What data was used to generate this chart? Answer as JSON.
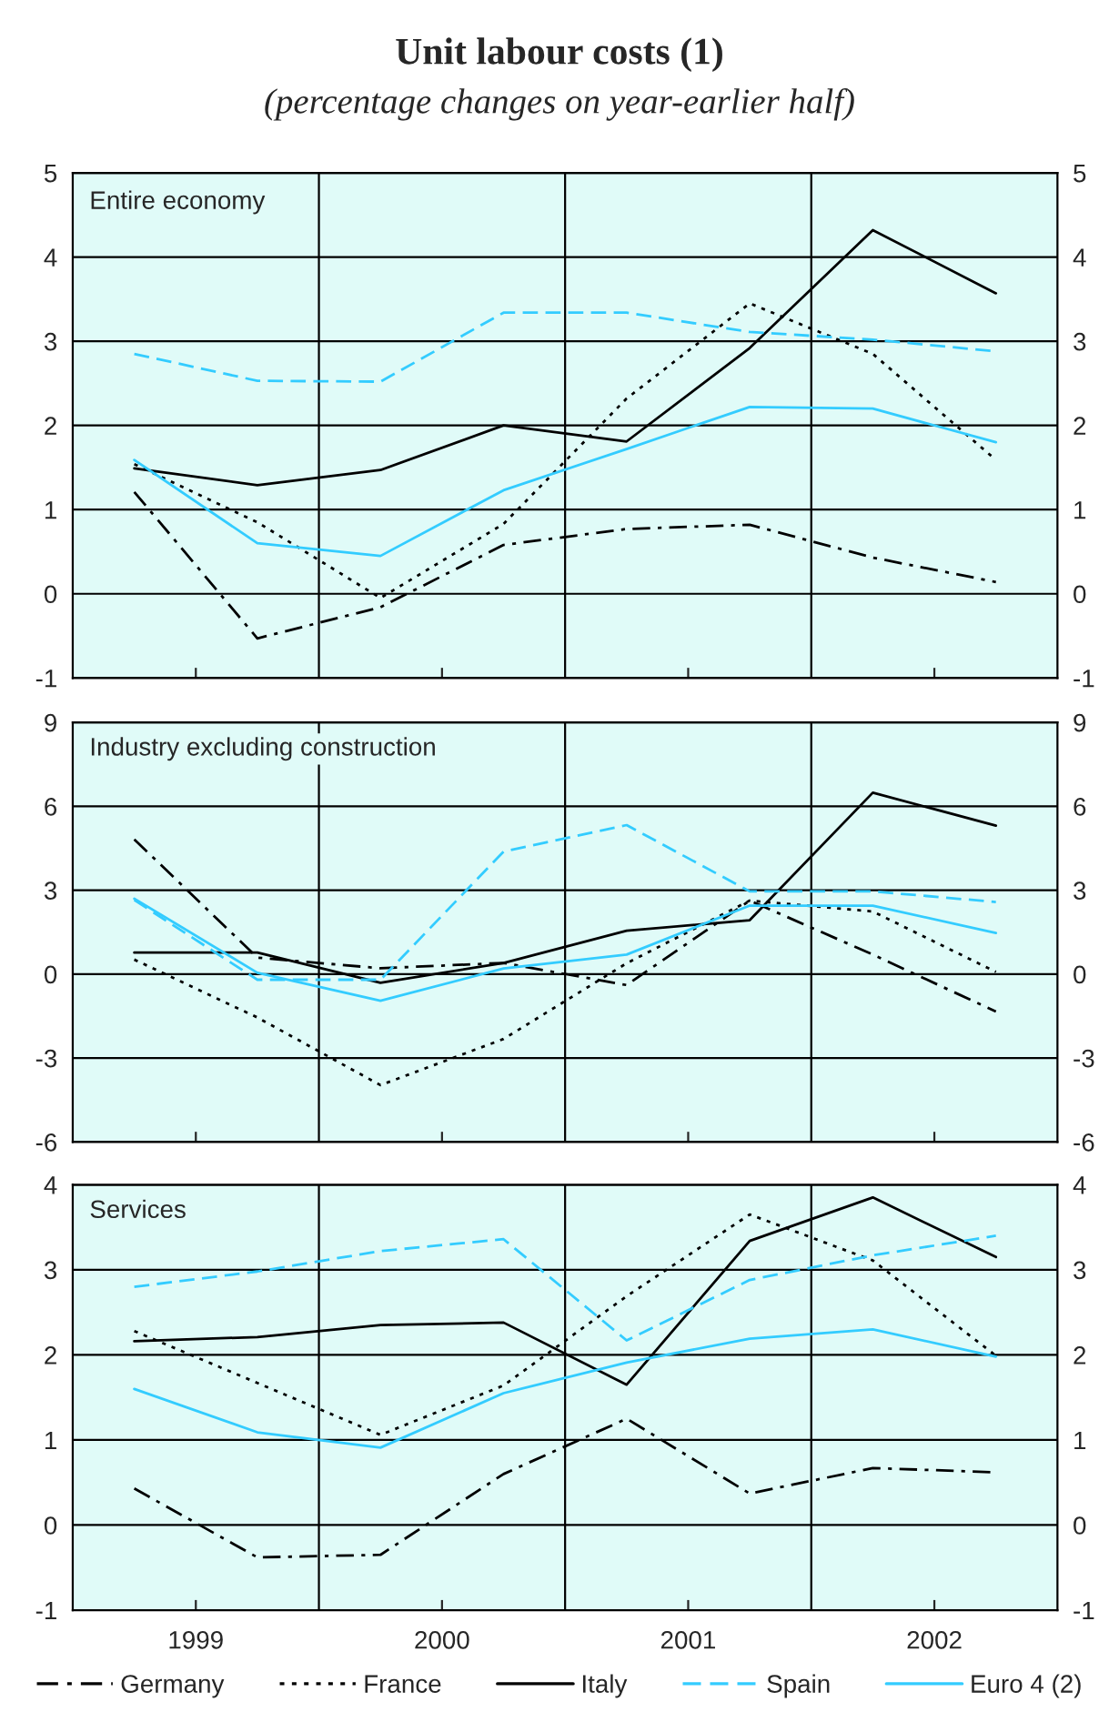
{
  "chart_data": [
    {
      "type": "line",
      "title": "Unit labour costs (1)",
      "subtitle": "(percentage changes on year-earlier half)",
      "annotations": [
        "Entire economy"
      ],
      "x": [
        1999.25,
        1999.75,
        2000.25,
        2000.75,
        2001.25,
        2001.75,
        2002.25,
        2002.75
      ],
      "xlim": [
        1999,
        2003
      ],
      "xticks": [
        {
          "value": 1999.5,
          "label": null
        },
        {
          "value": 2000.5,
          "label": null
        },
        {
          "value": 2001.5,
          "label": null
        },
        {
          "value": 2002.5,
          "label": null
        }
      ],
      "ylim": [
        -1,
        5
      ],
      "yticks": [
        -1,
        0,
        1,
        2,
        3,
        4,
        5
      ],
      "y2lim": [
        -1,
        5
      ],
      "y2ticks": [
        -1,
        0,
        1,
        2,
        3,
        4,
        5
      ],
      "tick_labels": "y",
      "grid": "y",
      "legend": "bottom",
      "ref_lines": [
        {
          "axis": "x",
          "value": 2000,
          "color": "#000000"
        },
        {
          "axis": "x",
          "value": 2001,
          "color": "#000000"
        },
        {
          "axis": "x",
          "value": 2002,
          "color": "#000000"
        }
      ],
      "series": [
        {
          "name": "Germany",
          "color": "#000000",
          "line_style": "dashdot",
          "values": [
            1.21,
            -0.53,
            -0.16,
            0.58,
            0.77,
            0.82,
            0.43,
            0.14
          ]
        },
        {
          "name": "France",
          "color": "#000000",
          "line_style": "dotted",
          "values": [
            1.54,
            0.85,
            -0.05,
            0.83,
            2.32,
            3.45,
            2.85,
            1.59
          ]
        },
        {
          "name": "Italy",
          "color": "#000000",
          "line_style": "solid",
          "values": [
            1.49,
            1.29,
            1.47,
            2.0,
            1.81,
            2.92,
            4.32,
            3.57
          ]
        },
        {
          "name": "Spain",
          "color": "#33ccff",
          "line_style": "dashed",
          "values": [
            2.85,
            2.53,
            2.52,
            3.34,
            3.34,
            3.11,
            3.02,
            2.88
          ]
        },
        {
          "name": "Euro 4 (2)",
          "color": "#33ccff",
          "line_style": "solid",
          "values": [
            1.59,
            0.6,
            0.45,
            1.23,
            1.72,
            2.22,
            2.2,
            1.8
          ]
        }
      ]
    },
    {
      "type": "line",
      "annotations": [
        "Industry excluding construction"
      ],
      "x": [
        1999.25,
        1999.75,
        2000.25,
        2000.75,
        2001.25,
        2001.75,
        2002.25,
        2002.75
      ],
      "xlim": [
        1999,
        2003
      ],
      "xticks": [
        {
          "value": 1999.5,
          "label": null
        },
        {
          "value": 2000.5,
          "label": null
        },
        {
          "value": 2001.5,
          "label": null
        },
        {
          "value": 2002.5,
          "label": null
        }
      ],
      "ylim": [
        -6,
        9
      ],
      "yticks": [
        -6,
        -3,
        0,
        3,
        6,
        9
      ],
      "y2lim": [
        -6,
        9
      ],
      "y2ticks": [
        -6,
        -3,
        0,
        3,
        6,
        9
      ],
      "tick_labels": "y",
      "grid": "y",
      "ref_lines": [
        {
          "axis": "x",
          "value": 2000,
          "color": "#000000"
        },
        {
          "axis": "x",
          "value": 2001,
          "color": "#000000"
        },
        {
          "axis": "x",
          "value": 2002,
          "color": "#000000"
        }
      ],
      "series": [
        {
          "color": "#000000",
          "line_style": "dashdot",
          "values": [
            4.82,
            0.59,
            0.21,
            0.4,
            -0.39,
            2.63,
            0.7,
            -1.34
          ]
        },
        {
          "color": "#000000",
          "line_style": "dotted",
          "values": [
            0.52,
            -1.55,
            -3.97,
            -2.32,
            0.39,
            2.63,
            2.24,
            0.08
          ]
        },
        {
          "color": "#000000",
          "line_style": "solid",
          "values": [
            0.77,
            0.77,
            -0.31,
            0.4,
            1.55,
            1.93,
            6.49,
            5.31
          ]
        },
        {
          "color": "#33ccff",
          "line_style": "dashed",
          "values": [
            2.65,
            -0.2,
            -0.2,
            4.38,
            5.33,
            2.96,
            2.96,
            2.58
          ]
        },
        {
          "color": "#33ccff",
          "line_style": "solid",
          "values": [
            2.7,
            0.05,
            -0.95,
            0.2,
            0.7,
            2.45,
            2.45,
            1.47
          ]
        }
      ]
    },
    {
      "type": "line",
      "annotations": [
        "Services"
      ],
      "x": [
        1999.25,
        1999.75,
        2000.25,
        2000.75,
        2001.25,
        2001.75,
        2002.25,
        2002.75
      ],
      "xlim": [
        1999,
        2003
      ],
      "xticks": [
        {
          "value": 1999.5,
          "label": "1999"
        },
        {
          "value": 2000.5,
          "label": "2000"
        },
        {
          "value": 2001.5,
          "label": "2001"
        },
        {
          "value": 2002.5,
          "label": "2002"
        }
      ],
      "ylim": [
        -1,
        4
      ],
      "yticks": [
        -1,
        0,
        1,
        2,
        3,
        4
      ],
      "y2lim": [
        -1,
        4
      ],
      "y2ticks": [
        -1,
        0,
        1,
        2,
        3,
        4
      ],
      "grid": "y",
      "ref_lines": [
        {
          "axis": "x",
          "value": 2000,
          "color": "#000000"
        },
        {
          "axis": "x",
          "value": 2001,
          "color": "#000000"
        },
        {
          "axis": "x",
          "value": 2002,
          "color": "#000000"
        }
      ],
      "series": [
        {
          "color": "#000000",
          "line_style": "dashdot",
          "values": [
            0.43,
            -0.38,
            -0.35,
            0.6,
            1.25,
            0.37,
            0.67,
            0.62
          ]
        },
        {
          "color": "#000000",
          "line_style": "dotted",
          "values": [
            2.28,
            1.67,
            1.06,
            1.64,
            2.69,
            3.65,
            3.11,
            1.99
          ]
        },
        {
          "color": "#000000",
          "line_style": "solid",
          "values": [
            2.16,
            2.21,
            2.35,
            2.38,
            1.65,
            3.34,
            3.85,
            3.15
          ]
        },
        {
          "color": "#33ccff",
          "line_style": "dashed",
          "values": [
            2.8,
            2.98,
            3.22,
            3.36,
            2.17,
            2.88,
            3.17,
            3.4
          ]
        },
        {
          "color": "#33ccff",
          "line_style": "solid",
          "values": [
            1.6,
            1.09,
            0.91,
            1.55,
            1.91,
            2.19,
            2.3,
            1.98
          ]
        }
      ]
    }
  ]
}
